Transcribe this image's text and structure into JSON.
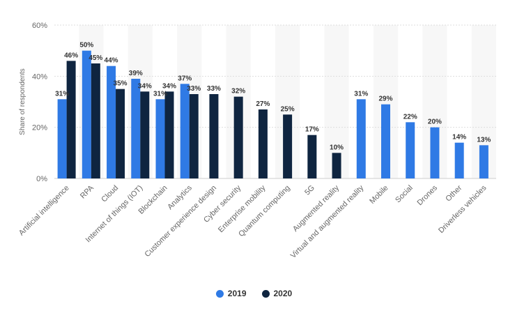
{
  "chart_data": {
    "type": "bar",
    "ylabel": "Share of respondents",
    "ylim": [
      0,
      60
    ],
    "yticks": [
      "0%",
      "20%",
      "40%",
      "60%"
    ],
    "grid": true,
    "legend_position": "bottom-center",
    "categories": [
      "Artificial intelligence",
      "RPA",
      "Cloud",
      "Internet of things (IOT)",
      "Blockchain",
      "Analytics",
      "Customer experience design",
      "Cyber security",
      "Enterprise mobility",
      "Quantum computing",
      "5G",
      "Augmented reality",
      "Virtual and augmented reality",
      "Mobile",
      "Social",
      "Drones",
      "Other",
      "Driverless vehicles"
    ],
    "series": [
      {
        "name": "2019",
        "color": "#2f7ae5",
        "values": [
          31,
          50,
          44,
          39,
          31,
          37,
          null,
          null,
          null,
          null,
          null,
          null,
          31,
          29,
          22,
          20,
          14,
          13
        ],
        "labels": [
          "31%",
          "50%",
          "44%",
          "39%",
          "31%",
          "37%",
          null,
          null,
          null,
          null,
          null,
          null,
          "31%",
          "29%",
          "22%",
          "20%",
          "14%",
          "13%"
        ]
      },
      {
        "name": "2020",
        "color": "#0f2540",
        "values": [
          46,
          45,
          35,
          34,
          34,
          33,
          33,
          32,
          27,
          25,
          17,
          10,
          null,
          null,
          null,
          null,
          null,
          null
        ],
        "labels": [
          "46%",
          "45%",
          "35%",
          "34%",
          "34%",
          "33%",
          "33%",
          "32%",
          "27%",
          "25%",
          "17%",
          "10%",
          null,
          null,
          null,
          null,
          null,
          null
        ]
      }
    ]
  }
}
